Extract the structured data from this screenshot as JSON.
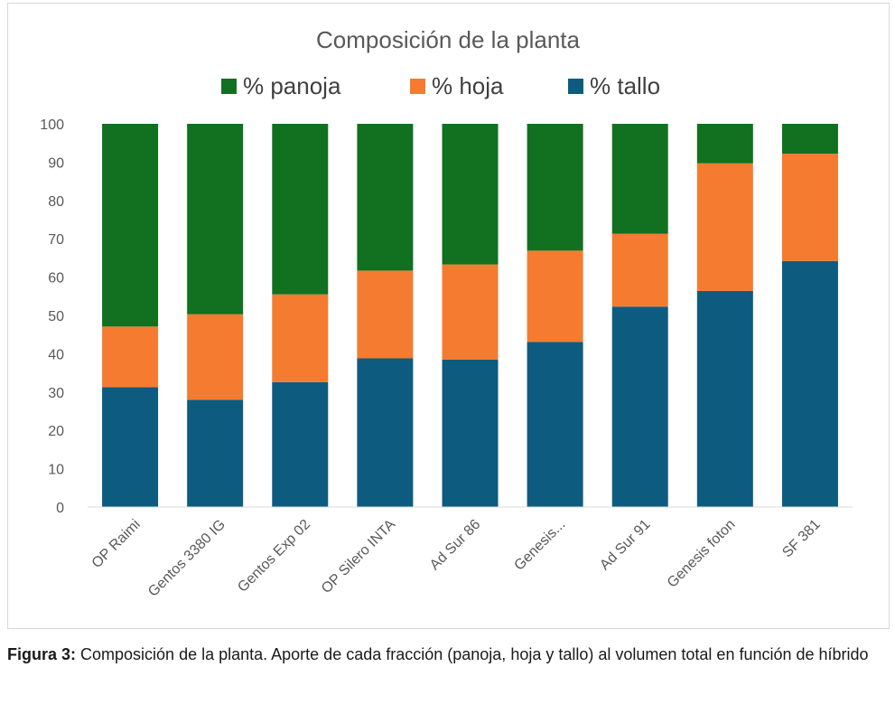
{
  "chart_data": {
    "type": "bar",
    "stacked": true,
    "title": "Composición de la planta",
    "categories": [
      "OP Raimi",
      "Gentos 3380 IG",
      "Gentos Exp 02",
      "OP Silero INTA",
      "Ad Sur 86",
      "Genesis...",
      "Ad Sur 91",
      "Genesis foton",
      "SF 381"
    ],
    "series": [
      {
        "name": "% tallo",
        "color": "#0e5b80",
        "values": [
          31.3,
          28,
          32.6,
          38.8,
          38.5,
          43.1,
          52.3,
          56.4,
          64.2
        ]
      },
      {
        "name": "% hoja",
        "color": "#f47b2f",
        "values": [
          15.8,
          22.3,
          22.9,
          22.9,
          24.8,
          23.8,
          19,
          33.3,
          28
        ]
      },
      {
        "name": "% panoja",
        "color": "#127021",
        "values": [
          52.9,
          49.7,
          44.5,
          38.3,
          36.7,
          33.1,
          28.7,
          10.3,
          7.8
        ]
      }
    ],
    "legend": [
      {
        "name": "% panoja",
        "color": "#127021"
      },
      {
        "name": "% hoja",
        "color": "#f47b2f"
      },
      {
        "name": "% tallo",
        "color": "#0e5b80"
      }
    ],
    "legend_position": "top",
    "ylim": [
      0,
      100
    ],
    "yticks": [
      0,
      10,
      20,
      30,
      40,
      50,
      60,
      70,
      80,
      90,
      100
    ],
    "xlabel": "",
    "ylabel": "",
    "grid": false
  },
  "caption": {
    "label": "Figura 3:",
    "text": " Composición de la planta. Aporte de cada fracción (panoja, hoja y tallo) al volumen total en función de híbrido"
  }
}
